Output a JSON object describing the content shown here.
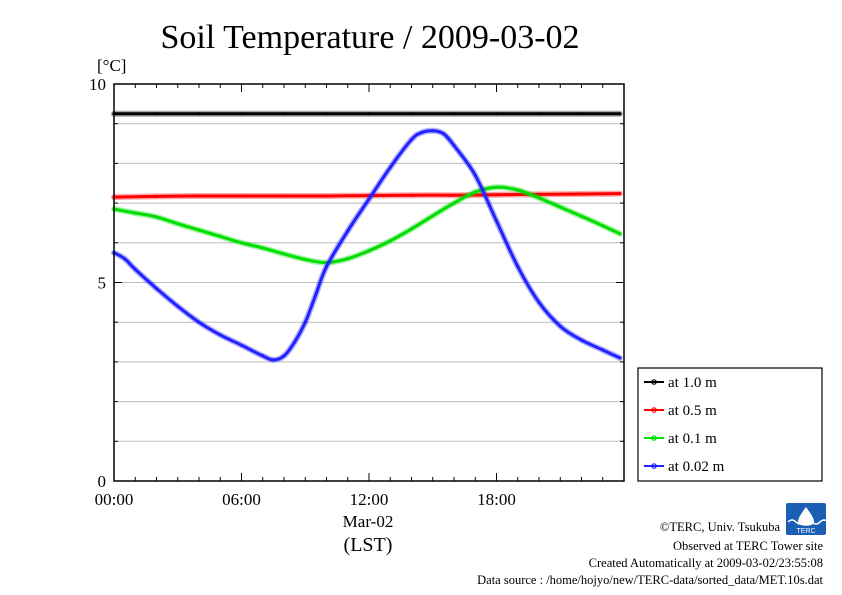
{
  "chart_data": {
    "type": "line",
    "title": "Soil Temperature / 2009-03-02",
    "ylabel": "[°C]",
    "xlabel": "(LST)",
    "date_label": "Mar-02",
    "xlim": [
      0,
      24
    ],
    "ylim": [
      0,
      10
    ],
    "x_ticks": [
      {
        "value": 0,
        "label": "00:00"
      },
      {
        "value": 6,
        "label": "06:00"
      },
      {
        "value": 12,
        "label": "12:00"
      },
      {
        "value": 18,
        "label": "18:00"
      }
    ],
    "y_ticks": [
      {
        "value": 0,
        "label": "0"
      },
      {
        "value": 5,
        "label": "5"
      },
      {
        "value": 10,
        "label": "10"
      }
    ],
    "grid": true,
    "grid_step": 1,
    "legend_position": "bottom-right",
    "series": [
      {
        "name": "at 1.0 m",
        "color": "#000000",
        "x": [
          0,
          2,
          4,
          6,
          8,
          10,
          12,
          14,
          16,
          18,
          20,
          22,
          23.8
        ],
        "values": [
          9.25,
          9.25,
          9.25,
          9.25,
          9.25,
          9.25,
          9.25,
          9.25,
          9.25,
          9.25,
          9.25,
          9.25,
          9.25
        ]
      },
      {
        "name": "at 0.5 m",
        "color": "#ff0000",
        "x": [
          0,
          2,
          4,
          6,
          8,
          10,
          12,
          14,
          16,
          18,
          20,
          22,
          23.8
        ],
        "values": [
          7.15,
          7.17,
          7.18,
          7.18,
          7.18,
          7.18,
          7.19,
          7.2,
          7.2,
          7.21,
          7.22,
          7.23,
          7.24
        ]
      },
      {
        "name": "at 0.1 m",
        "color": "#00dd00",
        "x": [
          0,
          1,
          2,
          3,
          4,
          5,
          6,
          7,
          8,
          9,
          10,
          11,
          12,
          13,
          14,
          15,
          16,
          17,
          18,
          19,
          20,
          21,
          22,
          23,
          23.8
        ],
        "values": [
          6.85,
          6.75,
          6.65,
          6.48,
          6.32,
          6.16,
          6.0,
          5.87,
          5.72,
          5.58,
          5.5,
          5.6,
          5.8,
          6.05,
          6.35,
          6.68,
          7.0,
          7.28,
          7.4,
          7.33,
          7.13,
          6.9,
          6.67,
          6.43,
          6.23
        ]
      },
      {
        "name": "at 0.02 m",
        "color": "#2222ff",
        "x": [
          0,
          0.5,
          1,
          2,
          3,
          4,
          5,
          6,
          7,
          7.5,
          8,
          8.5,
          9,
          9.5,
          10,
          11,
          12,
          13,
          14,
          14.5,
          15,
          15.5,
          16,
          17,
          18,
          19,
          20,
          21,
          22,
          23,
          23.8
        ],
        "values": [
          5.75,
          5.6,
          5.33,
          4.85,
          4.4,
          4.0,
          3.68,
          3.42,
          3.15,
          3.05,
          3.15,
          3.5,
          4.0,
          4.7,
          5.4,
          6.3,
          7.1,
          7.9,
          8.6,
          8.78,
          8.82,
          8.75,
          8.45,
          7.7,
          6.55,
          5.4,
          4.5,
          3.9,
          3.55,
          3.3,
          3.1
        ]
      }
    ]
  },
  "footer": {
    "copyright": "©TERC, Univ. Tsukuba",
    "observed": "Observed at TERC Tower site",
    "created": "Created Automatically at 2009-03-02/23:55:08",
    "source": "Data source : /home/hojyo/new/TERC-data/sorted_data/MET.10s.dat",
    "logo_text": "TERC"
  }
}
